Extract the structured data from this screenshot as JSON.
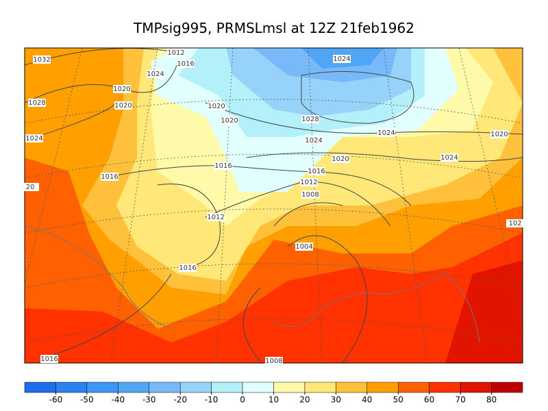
{
  "title": "TMPsig995, PRMSLmsl at 12Z  21feb1962",
  "isobar_labels": [
    "1032",
    "1012",
    "1016",
    "1024",
    "1024",
    "1020",
    "1028",
    "1020",
    "1020",
    "1020",
    "1028",
    "1024",
    "1020",
    "1024",
    "1024",
    "1020",
    "1024",
    "1016",
    "1016",
    "1016",
    "1012",
    "20",
    "1008",
    "1012",
    "102",
    "1004",
    "1016",
    "1016",
    "1008"
  ],
  "colorbar": {
    "ticks": [
      -60,
      -50,
      -40,
      -30,
      -20,
      -10,
      0,
      10,
      20,
      30,
      40,
      50,
      60,
      70,
      80
    ],
    "colors": [
      "#1e6eeb",
      "#2882f0",
      "#3c96f5",
      "#50a5f5",
      "#78b9fa",
      "#96d2fa",
      "#b4f0fa",
      "#e1ffff",
      "#fffaaa",
      "#ffe878",
      "#ffc03c",
      "#ffa000",
      "#ff6000",
      "#ff3200",
      "#e11400",
      "#c00000"
    ]
  }
}
